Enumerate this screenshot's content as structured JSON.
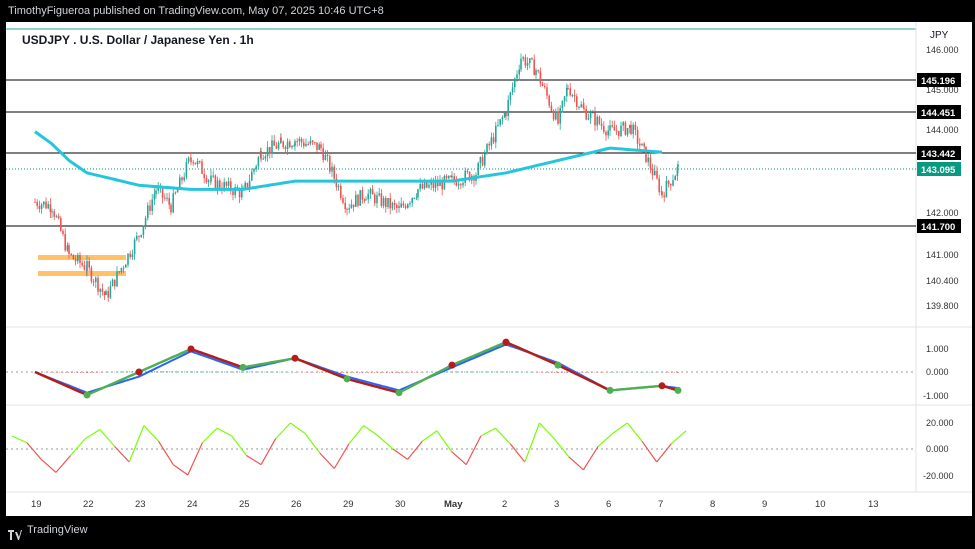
{
  "publish_line": "TimothyFigueroa published on TradingView.com, May 07, 2025 10:46 UTC+8",
  "footer_brand": "TradingView",
  "chart_data": {
    "type": "candlestick",
    "title": "USDJPY . U.S. Dollar / Japanese Yen . 1h",
    "currency": "JPY",
    "x_ticks": [
      "19",
      "22",
      "23",
      "24",
      "25",
      "26",
      "29",
      "30",
      "May",
      "2",
      "3",
      "6",
      "7",
      "8",
      "9",
      "10",
      "13"
    ],
    "price_ticks": [
      "146.000",
      "145.000",
      "144.000",
      "142.000",
      "141.000",
      "140.400",
      "139.800"
    ],
    "horizontal_levels": [
      "145.196",
      "144.451",
      "143.442",
      "141.700"
    ],
    "last_price": "143.095",
    "colors": {
      "up": "#26a69a",
      "down": "#ef5350",
      "ma": "#26c6da",
      "levels": "#000000",
      "zone": "#ffb74d",
      "last": "#089981"
    },
    "candle_anchors": [
      [
        "19",
        142.3
      ],
      [
        "20",
        142.2
      ],
      [
        "21",
        141.0
      ],
      [
        "22",
        140.7
      ],
      [
        "22.4",
        140.0
      ],
      [
        "23",
        141.5
      ],
      [
        "23.3",
        142.6
      ],
      [
        "23.6",
        142.2
      ],
      [
        "24",
        143.4
      ],
      [
        "24.4",
        142.8
      ],
      [
        "25",
        142.5
      ],
      [
        "25.3",
        143.5
      ],
      [
        "25.7",
        143.7
      ],
      [
        "26",
        143.8
      ],
      [
        "26.5",
        143.6
      ],
      [
        "29",
        142.2
      ],
      [
        "29.5",
        142.5
      ],
      [
        "30",
        142.1
      ],
      [
        "30.5",
        142.6
      ],
      [
        "May",
        142.8
      ],
      [
        "1.5",
        143.0
      ],
      [
        "2",
        144.5
      ],
      [
        "2.3",
        145.8
      ],
      [
        "2.6",
        145.5
      ],
      [
        "3",
        144.2
      ],
      [
        "3.2",
        145.1
      ],
      [
        "3.5",
        144.5
      ],
      [
        "6",
        144.0
      ],
      [
        "6.4",
        144.1
      ],
      [
        "6.7",
        143.4
      ],
      [
        "7",
        142.5
      ],
      [
        "7.3",
        143.1
      ]
    ],
    "ma_anchors": [
      [
        "19",
        144.0
      ],
      [
        "20",
        143.7
      ],
      [
        "21",
        143.3
      ],
      [
        "22",
        143.0
      ],
      [
        "23",
        142.7
      ],
      [
        "24",
        142.6
      ],
      [
        "25",
        142.6
      ],
      [
        "26",
        142.8
      ],
      [
        "29",
        142.8
      ],
      [
        "30",
        142.8
      ],
      [
        "May",
        142.8
      ],
      [
        "2",
        143.0
      ],
      [
        "3",
        143.3
      ],
      [
        "6",
        143.6
      ],
      [
        "7",
        143.5
      ]
    ],
    "osc1": {
      "y_ticks": [
        "1.000",
        "0.000",
        "-1.000"
      ],
      "fast_anchors": [
        [
          "19",
          0.0
        ],
        [
          "22",
          -1.0
        ],
        [
          "23",
          0.0
        ],
        [
          "24",
          1.0
        ],
        [
          "25",
          0.2
        ],
        [
          "26",
          0.6
        ],
        [
          "29",
          -0.3
        ],
        [
          "30",
          -0.9
        ],
        [
          "May",
          0.3
        ],
        [
          "2",
          1.3
        ],
        [
          "3",
          0.3
        ],
        [
          "6",
          -0.8
        ],
        [
          "7",
          -0.6
        ],
        [
          "7.3",
          -0.8
        ]
      ],
      "slow_anchors": [
        [
          "19",
          0.0
        ],
        [
          "22",
          -0.9
        ],
        [
          "23",
          -0.2
        ],
        [
          "24",
          0.9
        ],
        [
          "25",
          0.1
        ],
        [
          "26",
          0.6
        ],
        [
          "29",
          -0.2
        ],
        [
          "30",
          -0.8
        ],
        [
          "May",
          0.2
        ],
        [
          "2",
          1.2
        ],
        [
          "3",
          0.4
        ],
        [
          "6",
          -0.8
        ],
        [
          "7",
          -0.6
        ],
        [
          "7.3",
          -0.7
        ]
      ]
    },
    "osc2": {
      "y_ticks": [
        "20.000",
        "0.000",
        "-20.000"
      ],
      "values": [
        10,
        5,
        -8,
        -18,
        -5,
        8,
        15,
        2,
        -10,
        18,
        6,
        -12,
        -20,
        5,
        16,
        10,
        -5,
        -12,
        8,
        20,
        12,
        -3,
        -15,
        4,
        18,
        10,
        0,
        -8,
        6,
        14,
        -2,
        -12,
        10,
        16,
        4,
        -10,
        20,
        8,
        -6,
        -16,
        2,
        12,
        20,
        6,
        -10,
        4,
        14
      ]
    }
  }
}
